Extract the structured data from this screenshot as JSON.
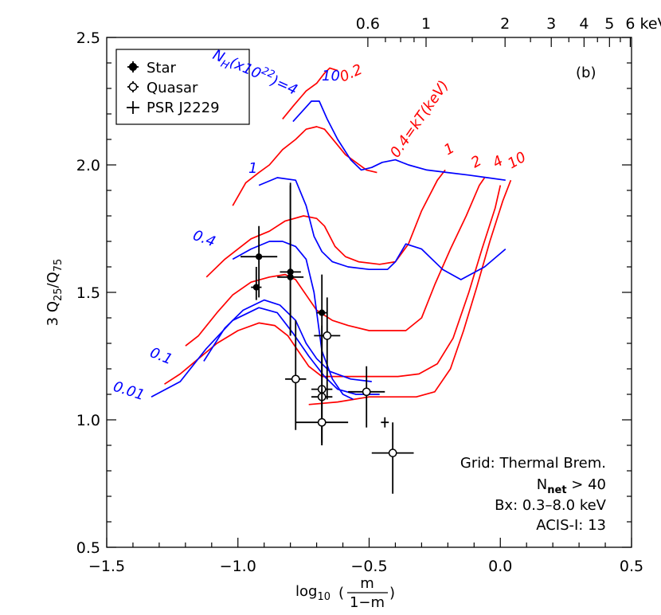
{
  "chart_data": {
    "type": "scatter",
    "xlim": [
      -1.5,
      0.5
    ],
    "ylim": [
      0.5,
      2.5
    ],
    "x_ticks": [
      -1.5,
      -1.0,
      -0.5,
      0.0,
      0.5
    ],
    "x_tick_labels": [
      "−1.5",
      "−1.0",
      "−0.5",
      "0.0",
      "0.5"
    ],
    "y_ticks": [
      0.5,
      1.0,
      1.5,
      2.0,
      2.5
    ],
    "y_tick_labels": [
      "0.5",
      "1.0",
      "1.5",
      "2.0",
      "2.5"
    ],
    "top_axis": {
      "ticks_kev": [
        0.6,
        1,
        2,
        3,
        4,
        5,
        6
      ],
      "tick_labels": [
        "0.6",
        "1",
        "2",
        "3",
        "4",
        "5",
        "6 keV"
      ]
    },
    "xlabel": {
      "prefix": "log",
      "sub": "10",
      "num": "m",
      "den": "1−m"
    },
    "ylabel": {
      "a": "3 Q",
      "sub1": "25",
      "b": "/Q",
      "sub2": "75"
    },
    "panel_label": "(b)",
    "legend": {
      "position": "top-left",
      "entries": [
        {
          "label": "Star",
          "marker": "filled-circle"
        },
        {
          "label": "Quasar",
          "marker": "open-circle"
        },
        {
          "label": "PSR J2229",
          "marker": "cross"
        }
      ]
    },
    "annotations": {
      "line1": "Grid: Thermal Brem.",
      "line2_main": "N",
      "line2_sub": "net",
      "line2_rest": " > 40",
      "line3": "Bx: 0.3–8.0 keV",
      "line4": "ACIS-I: 13"
    },
    "grid": {
      "nh_color": "#0000ff",
      "kt_color": "#ff0000",
      "nh_title": {
        "base": "N",
        "sub": "H",
        "mid": "(x10",
        "sup": "22",
        "end": ")=4"
      },
      "nh_labels": [
        "0.01",
        "0.1",
        "0.4",
        "1",
        "10"
      ],
      "kt_labels": [
        "0.2",
        "0.4=kT(keV)",
        "1",
        "2",
        "4",
        "10"
      ],
      "nh_lines": [
        {
          "label": "0.01",
          "points": [
            [
              -1.33,
              1.09
            ],
            [
              -1.22,
              1.15
            ],
            [
              -1.12,
              1.28
            ],
            [
              -1.02,
              1.39
            ],
            [
              -0.92,
              1.44
            ],
            [
              -0.85,
              1.42
            ],
            [
              -0.79,
              1.34
            ],
            [
              -0.73,
              1.25
            ],
            [
              -0.67,
              1.17
            ],
            [
              -0.62,
              1.12
            ],
            [
              -0.55,
              1.1
            ],
            [
              -0.46,
              1.1
            ]
          ]
        },
        {
          "label": "0.1",
          "points": [
            [
              -1.13,
              1.23
            ],
            [
              -1.05,
              1.36
            ],
            [
              -0.98,
              1.43
            ],
            [
              -0.9,
              1.47
            ],
            [
              -0.84,
              1.45
            ],
            [
              -0.78,
              1.39
            ],
            [
              -0.74,
              1.3
            ],
            [
              -0.7,
              1.24
            ],
            [
              -0.65,
              1.19
            ],
            [
              -0.57,
              1.16
            ],
            [
              -0.49,
              1.15
            ]
          ]
        },
        {
          "label": "0.4",
          "points": [
            [
              -1.02,
              1.63
            ],
            [
              -0.95,
              1.67
            ],
            [
              -0.88,
              1.7
            ],
            [
              -0.83,
              1.7
            ],
            [
              -0.78,
              1.68
            ],
            [
              -0.74,
              1.63
            ],
            [
              -0.71,
              1.5
            ],
            [
              -0.68,
              1.27
            ],
            [
              -0.64,
              1.16
            ],
            [
              -0.6,
              1.1
            ],
            [
              -0.56,
              1.08
            ]
          ]
        },
        {
          "label": "1",
          "points": [
            [
              -0.92,
              1.92
            ],
            [
              -0.85,
              1.95
            ],
            [
              -0.78,
              1.94
            ],
            [
              -0.74,
              1.84
            ],
            [
              -0.71,
              1.72
            ],
            [
              -0.68,
              1.66
            ],
            [
              -0.64,
              1.62
            ],
            [
              -0.58,
              1.6
            ],
            [
              -0.5,
              1.59
            ],
            [
              -0.43,
              1.59
            ],
            [
              -0.4,
              1.62
            ],
            [
              -0.36,
              1.69
            ],
            [
              -0.3,
              1.67
            ],
            [
              -0.22,
              1.59
            ],
            [
              -0.15,
              1.55
            ],
            [
              -0.06,
              1.6
            ],
            [
              0.02,
              1.67
            ]
          ]
        },
        {
          "label": "10",
          "points": [
            [
              -0.79,
              2.17
            ],
            [
              -0.72,
              2.25
            ],
            [
              -0.69,
              2.25
            ],
            [
              -0.66,
              2.18
            ],
            [
              -0.62,
              2.1
            ],
            [
              -0.57,
              2.02
            ],
            [
              -0.53,
              1.98
            ],
            [
              -0.49,
              1.99
            ],
            [
              -0.45,
              2.01
            ],
            [
              -0.4,
              2.02
            ],
            [
              -0.35,
              2.0
            ],
            [
              -0.28,
              1.98
            ],
            [
              -0.2,
              1.97
            ],
            [
              -0.12,
              1.96
            ],
            [
              -0.05,
              1.95
            ],
            [
              0.02,
              1.94
            ]
          ]
        }
      ],
      "kt_lines": [
        {
          "label": "0.2",
          "points": [
            [
              -0.83,
              2.18
            ],
            [
              -0.79,
              2.23
            ],
            [
              -0.74,
              2.29
            ],
            [
              -0.7,
              2.32
            ],
            [
              -0.67,
              2.36
            ],
            [
              -0.65,
              2.38
            ],
            [
              -0.62,
              2.37
            ]
          ]
        },
        {
          "label": "0.4=kT(keV)",
          "points": [
            [
              -1.02,
              1.84
            ],
            [
              -0.97,
              1.93
            ],
            [
              -0.92,
              1.97
            ],
            [
              -0.88,
              2.0
            ],
            [
              -0.83,
              2.06
            ],
            [
              -0.78,
              2.1
            ],
            [
              -0.74,
              2.14
            ],
            [
              -0.7,
              2.15
            ],
            [
              -0.67,
              2.14
            ],
            [
              -0.63,
              2.09
            ],
            [
              -0.59,
              2.04
            ],
            [
              -0.55,
              2.01
            ],
            [
              -0.51,
              1.98
            ],
            [
              -0.47,
              1.97
            ]
          ]
        },
        {
          "label": "1",
          "points": [
            [
              -1.12,
              1.56
            ],
            [
              -1.05,
              1.63
            ],
            [
              -1.0,
              1.67
            ],
            [
              -0.95,
              1.71
            ],
            [
              -0.88,
              1.74
            ],
            [
              -0.82,
              1.78
            ],
            [
              -0.75,
              1.8
            ],
            [
              -0.7,
              1.79
            ],
            [
              -0.67,
              1.76
            ],
            [
              -0.63,
              1.68
            ],
            [
              -0.59,
              1.64
            ],
            [
              -0.54,
              1.62
            ],
            [
              -0.46,
              1.61
            ],
            [
              -0.4,
              1.62
            ],
            [
              -0.35,
              1.69
            ],
            [
              -0.3,
              1.82
            ],
            [
              -0.24,
              1.94
            ],
            [
              -0.21,
              1.98
            ]
          ]
        },
        {
          "label": "2",
          "points": [
            [
              -1.2,
              1.29
            ],
            [
              -1.15,
              1.33
            ],
            [
              -1.08,
              1.42
            ],
            [
              -1.02,
              1.49
            ],
            [
              -0.95,
              1.54
            ],
            [
              -0.88,
              1.56
            ],
            [
              -0.82,
              1.57
            ],
            [
              -0.78,
              1.55
            ],
            [
              -0.74,
              1.49
            ],
            [
              -0.7,
              1.43
            ],
            [
              -0.64,
              1.39
            ],
            [
              -0.58,
              1.37
            ],
            [
              -0.5,
              1.35
            ],
            [
              -0.42,
              1.35
            ],
            [
              -0.36,
              1.35
            ],
            [
              -0.3,
              1.4
            ],
            [
              -0.25,
              1.53
            ],
            [
              -0.19,
              1.67
            ],
            [
              -0.13,
              1.8
            ],
            [
              -0.08,
              1.92
            ],
            [
              -0.06,
              1.95
            ]
          ]
        },
        {
          "label": "4",
          "points": [
            [
              -1.28,
              1.14
            ],
            [
              -1.22,
              1.18
            ],
            [
              -1.15,
              1.24
            ],
            [
              -1.08,
              1.3
            ],
            [
              -1.0,
              1.35
            ],
            [
              -0.92,
              1.38
            ],
            [
              -0.86,
              1.37
            ],
            [
              -0.81,
              1.33
            ],
            [
              -0.77,
              1.27
            ],
            [
              -0.73,
              1.21
            ],
            [
              -0.68,
              1.17
            ],
            [
              -0.61,
              1.17
            ],
            [
              -0.55,
              1.17
            ],
            [
              -0.47,
              1.17
            ],
            [
              -0.39,
              1.17
            ],
            [
              -0.31,
              1.18
            ],
            [
              -0.24,
              1.22
            ],
            [
              -0.18,
              1.32
            ],
            [
              -0.12,
              1.5
            ],
            [
              -0.07,
              1.67
            ],
            [
              -0.02,
              1.83
            ],
            [
              0.0,
              1.92
            ]
          ]
        },
        {
          "label": "10",
          "points": [
            [
              -0.73,
              1.06
            ],
            [
              -0.62,
              1.07
            ],
            [
              -0.5,
              1.09
            ],
            [
              -0.4,
              1.09
            ],
            [
              -0.32,
              1.09
            ],
            [
              -0.25,
              1.11
            ],
            [
              -0.19,
              1.2
            ],
            [
              -0.14,
              1.35
            ],
            [
              -0.09,
              1.52
            ],
            [
              -0.04,
              1.7
            ],
            [
              0.01,
              1.86
            ],
            [
              0.04,
              1.94
            ]
          ]
        }
      ]
    },
    "series": [
      {
        "name": "Star",
        "marker": "filled-circle",
        "points": [
          {
            "x": -0.93,
            "y": 1.52,
            "xerr": 0.02,
            "yerr_lo": 0.05,
            "yerr_hi": 0.08
          },
          {
            "x": -0.92,
            "y": 1.64,
            "xerr": 0.07,
            "yerr_lo": 0.16,
            "yerr_hi": 0.12
          },
          {
            "x": -0.8,
            "y": 1.58,
            "xerr": 0.04,
            "yerr_lo": 0.25,
            "yerr_hi": 0.35
          },
          {
            "x": -0.8,
            "y": 1.56,
            "xerr": 0.05,
            "yerr_lo": 0.23,
            "yerr_hi": 0.36
          },
          {
            "x": -0.68,
            "y": 1.42,
            "xerr": 0.02,
            "yerr_lo": 0.25,
            "yerr_hi": 0.15
          }
        ]
      },
      {
        "name": "Quasar",
        "marker": "open-circle",
        "points": [
          {
            "x": -0.66,
            "y": 1.33,
            "xerr": 0.05,
            "yerr_lo": 0.25,
            "yerr_hi": 0.15
          },
          {
            "x": -0.78,
            "y": 1.16,
            "xerr": 0.04,
            "yerr_lo": 0.2,
            "yerr_hi": 0.23
          },
          {
            "x": -0.68,
            "y": 1.12,
            "xerr": 0.04,
            "yerr_lo": 0.22,
            "yerr_hi": 0.25
          },
          {
            "x": -0.68,
            "y": 1.09,
            "xerr": 0.04,
            "yerr_lo": 0.19,
            "yerr_hi": 0.18
          },
          {
            "x": -0.51,
            "y": 1.11,
            "xerr": 0.07,
            "yerr_lo": 0.14,
            "yerr_hi": 0.1
          },
          {
            "x": -0.68,
            "y": 0.99,
            "xerr": 0.1,
            "yerr_lo": 0.08,
            "yerr_hi": 0.13
          },
          {
            "x": -0.41,
            "y": 0.87,
            "xerr": 0.08,
            "yerr_lo": 0.16,
            "yerr_hi": 0.12
          }
        ]
      },
      {
        "name": "PSR J2229",
        "marker": "cross",
        "points": [
          {
            "x": -0.44,
            "y": 0.99,
            "xerr": 0.015,
            "yerr_lo": 0.02,
            "yerr_hi": 0.02
          }
        ]
      }
    ]
  }
}
